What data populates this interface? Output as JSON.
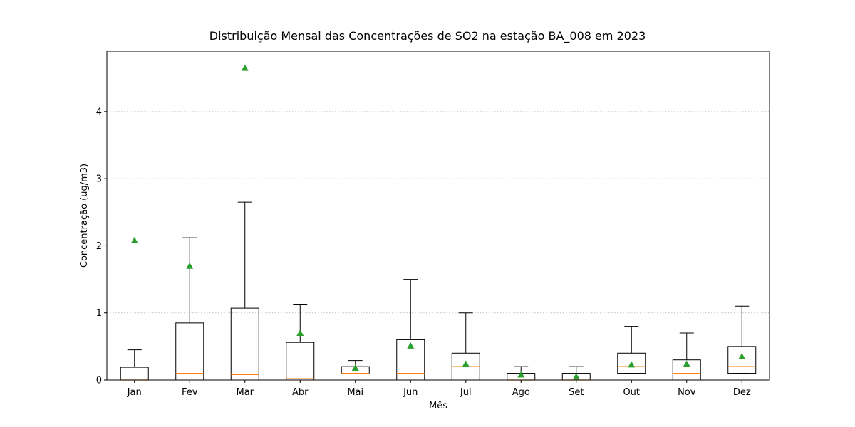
{
  "chart_data": {
    "type": "boxplot",
    "title": "Distribuição Mensal das Concentrações de SO2 na estação BA_008 em 2023",
    "xlabel": "Mês",
    "ylabel": "Concentração (ug/m3)",
    "ylim": [
      0,
      4.9
    ],
    "yticks": [
      0,
      1,
      2,
      3,
      4
    ],
    "ytick_labels": [
      "0",
      "1",
      "2",
      "3",
      "4"
    ],
    "grid": "horizontal dotted",
    "show_fliers": false,
    "show_means": true,
    "categories": [
      "Jan",
      "Fev",
      "Mar",
      "Abr",
      "Mai",
      "Jun",
      "Jul",
      "Ago",
      "Set",
      "Out",
      "Nov",
      "Dez"
    ],
    "boxes": [
      {
        "whisker_low": 0,
        "q1": 0,
        "median": 0,
        "q3": 0.19,
        "whisker_high": 0.45,
        "mean": 2.08
      },
      {
        "whisker_low": 0,
        "q1": 0,
        "median": 0.1,
        "q3": 0.85,
        "whisker_high": 2.12,
        "mean": 1.7
      },
      {
        "whisker_low": 0,
        "q1": 0,
        "median": 0.08,
        "q3": 1.07,
        "whisker_high": 2.65,
        "mean": 4.65
      },
      {
        "whisker_low": 0,
        "q1": 0,
        "median": 0.02,
        "q3": 0.56,
        "whisker_high": 1.13,
        "mean": 0.7
      },
      {
        "whisker_low": 0.1,
        "q1": 0.1,
        "median": 0.1,
        "q3": 0.2,
        "whisker_high": 0.29,
        "mean": 0.18
      },
      {
        "whisker_low": 0,
        "q1": 0,
        "median": 0.1,
        "q3": 0.6,
        "whisker_high": 1.5,
        "mean": 0.51
      },
      {
        "whisker_low": 0,
        "q1": 0,
        "median": 0.2,
        "q3": 0.4,
        "whisker_high": 1.0,
        "mean": 0.24
      },
      {
        "whisker_low": 0,
        "q1": 0,
        "median": 0,
        "q3": 0.1,
        "whisker_high": 0.2,
        "mean": 0.08
      },
      {
        "whisker_low": 0,
        "q1": 0,
        "median": 0,
        "q3": 0.1,
        "whisker_high": 0.2,
        "mean": 0.05
      },
      {
        "whisker_low": 0.1,
        "q1": 0.1,
        "median": 0.2,
        "q3": 0.4,
        "whisker_high": 0.8,
        "mean": 0.23
      },
      {
        "whisker_low": 0,
        "q1": 0,
        "median": 0.1,
        "q3": 0.3,
        "whisker_high": 0.7,
        "mean": 0.24
      },
      {
        "whisker_low": 0.1,
        "q1": 0.1,
        "median": 0.2,
        "q3": 0.5,
        "whisker_high": 1.1,
        "mean": 0.35
      }
    ],
    "colors": {
      "box": "#000000",
      "median": "#ff7f0e",
      "mean": "#2ca02c",
      "grid": "#b0b0b0"
    }
  }
}
